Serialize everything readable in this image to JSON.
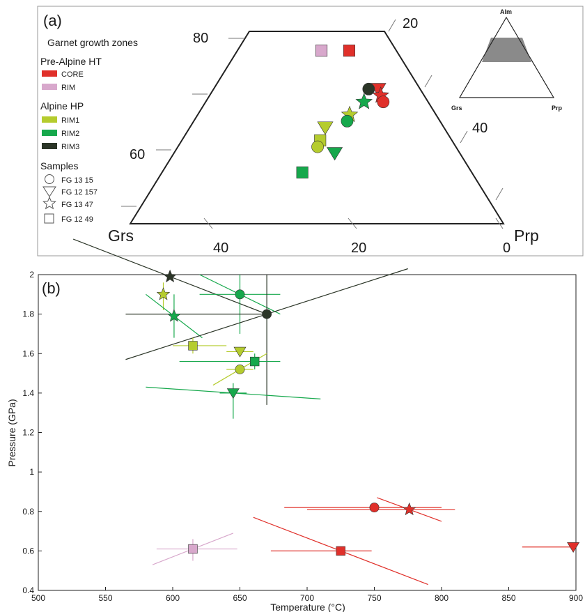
{
  "panel_a": {
    "label": "(a)",
    "title": "Garnet growth zones",
    "corner_labels": {
      "grs": "Grs",
      "prp": "Prp"
    },
    "ticks_left": [
      "80",
      "60"
    ],
    "ticks_right": [
      "20",
      "40"
    ],
    "ticks_bottom": [
      "40",
      "20",
      "0"
    ],
    "inset": {
      "top": "Alm",
      "left": "Grs",
      "right": "Prp"
    },
    "legend": {
      "group1": "Pre-Alpine HT",
      "group2": "Alpine HP",
      "zones": [
        {
          "key": "core",
          "label": "CORE",
          "color": "#e0302a"
        },
        {
          "key": "rim",
          "label": "RIM",
          "color": "#d8a8cc"
        },
        {
          "key": "rim1",
          "label": "RIM1",
          "color": "#b5cc2e"
        },
        {
          "key": "rim2",
          "label": "RIM2",
          "color": "#16a84c"
        },
        {
          "key": "rim3",
          "label": "RIM3",
          "color": "#2b3527"
        }
      ],
      "samples_title": "Samples",
      "samples": [
        {
          "shape": "circle",
          "label": "FG 13 15"
        },
        {
          "shape": "triangle",
          "label": "FG 12 157"
        },
        {
          "shape": "star",
          "label": "FG 13 47"
        },
        {
          "shape": "square",
          "label": "FG 12 49"
        }
      ]
    }
  },
  "colors": {
    "core": "#e0302a",
    "rim": "#d8a8cc",
    "rim1": "#b5cc2e",
    "rim2": "#16a84c",
    "rim3": "#2b3527"
  },
  "chart_data": [
    {
      "type": "scatter",
      "subtype": "ternary",
      "components": [
        "Alm",
        "Grs",
        "Prp"
      ],
      "visible_range": {
        "alm_min": 50,
        "alm_max": 80
      },
      "title": "",
      "points": [
        {
          "zone": "core",
          "shape": "square",
          "alm": 77,
          "grs": 4,
          "prp": 19
        },
        {
          "zone": "rim",
          "shape": "square",
          "alm": 77,
          "grs": 10,
          "prp": 13
        },
        {
          "zone": "core",
          "shape": "triangle",
          "alm": 71,
          "grs": 1,
          "prp": 28
        },
        {
          "zone": "core",
          "shape": "star",
          "alm": 70,
          "grs": 1,
          "prp": 29
        },
        {
          "zone": "core",
          "shape": "circle",
          "alm": 69,
          "grs": 1,
          "prp": 30
        },
        {
          "zone": "rim3",
          "shape": "circle",
          "alm": 71,
          "grs": 3,
          "prp": 26
        },
        {
          "zone": "rim2",
          "shape": "star",
          "alm": 69,
          "grs": 5,
          "prp": 26
        },
        {
          "zone": "rim1",
          "shape": "star",
          "alm": 67,
          "grs": 9,
          "prp": 24
        },
        {
          "zone": "rim2",
          "shape": "circle",
          "alm": 66,
          "grs": 10,
          "prp": 24
        },
        {
          "zone": "rim1",
          "shape": "triangle",
          "alm": 65,
          "grs": 15,
          "prp": 20
        },
        {
          "zone": "rim1",
          "shape": "square",
          "alm": 63,
          "grs": 17,
          "prp": 20
        },
        {
          "zone": "rim1",
          "shape": "circle",
          "alm": 62,
          "grs": 18,
          "prp": 20
        },
        {
          "zone": "rim2",
          "shape": "triangle",
          "alm": 61,
          "grs": 15,
          "prp": 24
        },
        {
          "zone": "rim2",
          "shape": "square",
          "alm": 58,
          "grs": 23,
          "prp": 19
        }
      ]
    },
    {
      "type": "scatter",
      "label": "(b)",
      "xlabel": "Temperature (°C)",
      "ylabel": "Pressure (GPa)",
      "xlim": [
        500,
        900
      ],
      "ylim": [
        0.4,
        2
      ],
      "xticks": [
        500,
        550,
        600,
        650,
        700,
        750,
        800,
        850,
        900
      ],
      "yticks": [
        0.4,
        0.6,
        0.8,
        1,
        1.2,
        1.4,
        1.6,
        1.8,
        2
      ],
      "xtick_labels": [
        "500",
        "550",
        "600",
        "650",
        "700",
        "750",
        "800",
        "850",
        "900"
      ],
      "ytick_labels": [
        "0.4",
        "0.6",
        "0.8",
        "1",
        "1.2",
        "1.4",
        "1.6",
        "1.8",
        "2"
      ],
      "points": [
        {
          "zone": "rim3",
          "shape": "star",
          "t": 598,
          "p": 1.99,
          "slope": [
            670,
            1.8
          ],
          "tx": [
            598,
            598
          ]
        },
        {
          "zone": "rim1",
          "shape": "star",
          "t": 593,
          "p": 1.9,
          "vy": [
            1.82,
            1.96
          ]
        },
        {
          "zone": "rim2",
          "shape": "star",
          "t": 601,
          "p": 1.79,
          "vy": [
            1.68,
            1.9
          ],
          "slope": [
            580,
            1.9
          ]
        },
        {
          "zone": "rim2",
          "shape": "circle",
          "t": 650,
          "p": 1.9,
          "tx": [
            620,
            680
          ],
          "vy": [
            1.7,
            2.0
          ],
          "slope": [
            620,
            2.0
          ]
        },
        {
          "zone": "rim3",
          "shape": "circle",
          "t": 670,
          "p": 1.8,
          "tx": [
            565,
            670
          ],
          "vy": [
            1.34,
            2.0
          ],
          "slope": [
            565,
            1.57
          ]
        },
        {
          "zone": "rim1",
          "shape": "square",
          "t": 615,
          "p": 1.64,
          "tx": [
            600,
            640
          ],
          "vy": [
            1.6,
            1.68
          ]
        },
        {
          "zone": "rim1",
          "shape": "triangle",
          "t": 650,
          "p": 1.61,
          "tx": [
            640,
            660
          ]
        },
        {
          "zone": "rim2",
          "shape": "square",
          "t": 661,
          "p": 1.56,
          "tx": [
            605,
            680
          ],
          "vy": [
            1.52,
            1.6
          ]
        },
        {
          "zone": "rim1",
          "shape": "circle",
          "t": 650,
          "p": 1.52,
          "tx": [
            640,
            660
          ],
          "slope": [
            670,
            1.6
          ]
        },
        {
          "zone": "rim2",
          "shape": "triangle",
          "t": 645,
          "p": 1.4,
          "tx": [
            635,
            655
          ],
          "vy": [
            1.27,
            1.45
          ],
          "slope": [
            580,
            1.43
          ]
        },
        {
          "zone": "core",
          "shape": "circle",
          "t": 750,
          "p": 0.82,
          "tx": [
            683,
            800
          ]
        },
        {
          "zone": "core",
          "shape": "star",
          "t": 776,
          "p": 0.81,
          "tx": [
            700,
            810
          ],
          "slope": [
            800,
            0.75
          ]
        },
        {
          "zone": "core",
          "shape": "square",
          "t": 725,
          "p": 0.6,
          "tx": [
            673,
            748
          ],
          "vy": [
            0.58,
            0.62
          ],
          "slope": [
            790,
            0.43
          ]
        },
        {
          "zone": "rim",
          "shape": "square",
          "t": 615,
          "p": 0.61,
          "tx": [
            588,
            648
          ],
          "vy": [
            0.55,
            0.66
          ],
          "slope": [
            585,
            0.53
          ]
        },
        {
          "zone": "core",
          "shape": "triangle",
          "t": 898,
          "p": 0.62,
          "tx": [
            860,
            900
          ]
        }
      ]
    }
  ]
}
